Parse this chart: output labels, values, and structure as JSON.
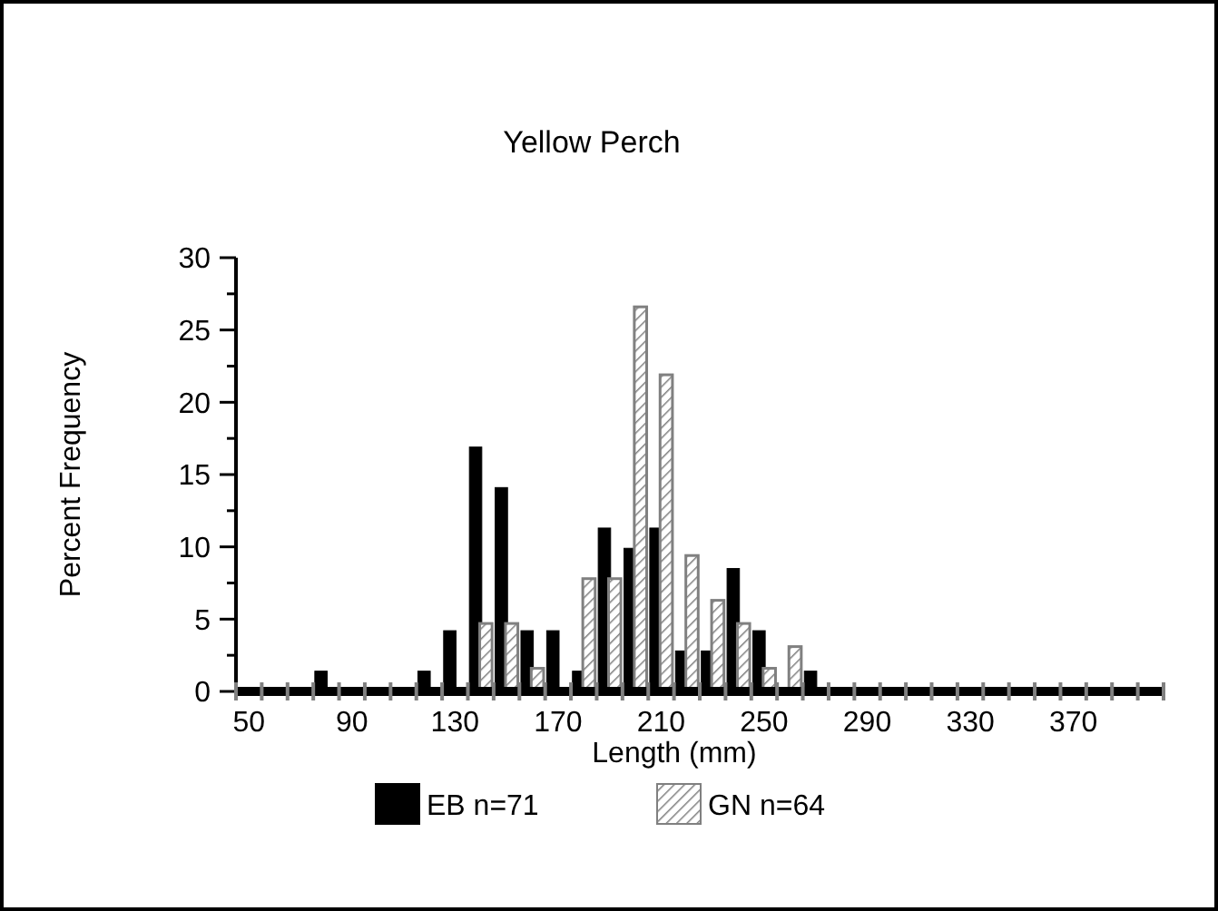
{
  "chart_data": {
    "type": "bar",
    "title": "Yellow Perch",
    "xlabel": "Length (mm)",
    "ylabel": "Percent Frequency",
    "categories": [
      "50",
      null,
      null,
      null,
      "90",
      null,
      null,
      null,
      "130",
      null,
      null,
      null,
      "170",
      null,
      null,
      null,
      "210",
      null,
      null,
      null,
      "250",
      null,
      null,
      null,
      "290",
      null,
      null,
      null,
      "330",
      null,
      null,
      null,
      "370",
      null,
      null,
      null
    ],
    "series": [
      {
        "name": "EB n=71",
        "color": "#000000",
        "values": [
          null,
          null,
          null,
          1.4,
          null,
          null,
          null,
          1.4,
          4.2,
          16.9,
          14.1,
          4.2,
          4.2,
          1.4,
          11.3,
          9.9,
          11.3,
          2.8,
          2.8,
          8.5,
          4.2,
          null,
          1.4,
          null,
          null,
          null,
          null,
          null,
          null,
          null,
          null,
          null,
          null,
          null,
          null,
          null
        ]
      },
      {
        "name": "GN n=64",
        "color": "#808080",
        "values": [
          null,
          null,
          null,
          null,
          null,
          null,
          null,
          null,
          null,
          4.7,
          4.7,
          1.6,
          null,
          7.8,
          7.8,
          26.6,
          21.9,
          9.4,
          6.3,
          4.7,
          1.6,
          3.1,
          null,
          null,
          null,
          null,
          null,
          null,
          null,
          null,
          null,
          null,
          null,
          null,
          null,
          null
        ]
      }
    ],
    "ylim": [
      0,
      30
    ],
    "yticks": [
      0,
      {
        "value": 2.5,
        "label": null
      },
      5,
      {
        "value": 7.5,
        "label": null
      },
      10,
      {
        "value": 12.5,
        "label": null
      },
      15,
      {
        "value": 17.5,
        "label": null
      },
      20,
      {
        "value": 22.5,
        "label": null
      },
      25,
      {
        "value": 27.5,
        "label": null
      },
      30
    ],
    "grid": false,
    "legend": "bottom"
  }
}
